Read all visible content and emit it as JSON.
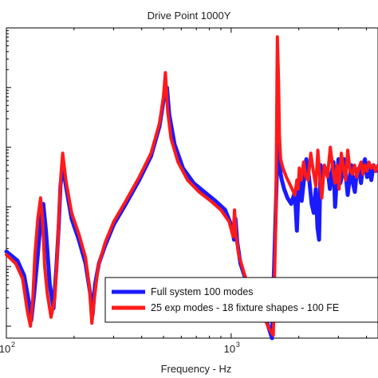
{
  "chart_data": {
    "type": "line",
    "title": "Drive Point 1000Y",
    "xlabel": "Frequency - Hz",
    "ylabel": "",
    "x_scale": "log",
    "y_scale": "log",
    "xlim": [
      100,
      4500
    ],
    "ylim": [
      -4.2,
      1.0
    ],
    "grid": false,
    "legend_position": "bottom-right",
    "x_tick_labels": [
      {
        "base": "10",
        "exp": "2",
        "x": 100
      },
      {
        "base": "10",
        "exp": "3",
        "x": 1000
      }
    ],
    "series": [
      {
        "name": "Full system 100 modes",
        "color": "#1a1aff",
        "x": [
          100,
          112,
          120,
          126,
          129,
          133,
          138,
          143,
          146,
          150,
          156,
          162,
          167,
          171,
          174,
          178,
          185,
          195,
          210,
          225,
          236,
          242,
          248,
          258,
          275,
          300,
          340,
          390,
          440,
          480,
          505,
          518,
          530,
          560,
          610,
          680,
          760,
          850,
          940,
          1000,
          1030,
          1045,
          1065,
          1100,
          1180,
          1300,
          1420,
          1520,
          1580,
          1610,
          1640,
          1660,
          1680,
          1720,
          1780,
          1850,
          1920,
          1960,
          1990,
          2020,
          2060,
          2100,
          2160,
          2220,
          2280,
          2330,
          2380,
          2420,
          2460,
          2500,
          2560,
          2620,
          2690,
          2750,
          2800,
          2850,
          2900,
          2950,
          3000,
          3060,
          3120,
          3180,
          3240,
          3300,
          3360,
          3420,
          3480,
          3550,
          3620,
          3700,
          3780,
          3860,
          3940,
          4020,
          4100,
          4200,
          4300,
          4400,
          4500
        ],
        "y": [
          -2.75,
          -2.9,
          -3.15,
          -3.6,
          -3.9,
          -3.45,
          -2.8,
          -2.1,
          -1.95,
          -2.4,
          -3.3,
          -3.7,
          -3.0,
          -2.3,
          -1.65,
          -1.3,
          -1.7,
          -2.2,
          -2.55,
          -2.95,
          -3.45,
          -3.8,
          -3.3,
          -2.95,
          -2.65,
          -2.3,
          -1.95,
          -1.55,
          -1.15,
          -0.65,
          -0.12,
          0.0,
          -0.45,
          -0.95,
          -1.35,
          -1.6,
          -1.75,
          -1.9,
          -2.05,
          -2.3,
          -2.55,
          -2.2,
          -2.6,
          -2.95,
          -3.3,
          -3.6,
          -3.85,
          -4.2,
          -2.0,
          -0.95,
          -1.25,
          -1.45,
          -1.55,
          -1.7,
          -1.85,
          -1.95,
          -1.75,
          -2.4,
          -1.75,
          -1.5,
          -1.9,
          -1.6,
          -1.2,
          -1.5,
          -1.95,
          -2.1,
          -1.7,
          -2.35,
          -2.55,
          -1.3,
          -1.45,
          -1.35,
          -1.4,
          -1.7,
          -1.45,
          -1.25,
          -2.0,
          -1.55,
          -1.2,
          -1.6,
          -1.45,
          -1.2,
          -1.5,
          -1.8,
          -1.55,
          -1.3,
          -1.6,
          -1.75,
          -1.4,
          -1.35,
          -1.6,
          -1.3,
          -1.2,
          -1.5,
          -1.35,
          -1.55,
          -1.3,
          -1.4,
          -1.35
        ]
      },
      {
        "name": "25 exp modes - 18 fixture shapes - 100 FE",
        "color": "#ff1a1a",
        "x": [
          100,
          110,
          118,
          124,
          128,
          131,
          134,
          138,
          142,
          145,
          148,
          152,
          158,
          164,
          168,
          172,
          175,
          178,
          184,
          195,
          210,
          225,
          234,
          240,
          246,
          256,
          275,
          300,
          340,
          390,
          440,
          480,
          500,
          510,
          522,
          540,
          580,
          640,
          720,
          810,
          900,
          980,
          1020,
          1035,
          1050,
          1080,
          1150,
          1260,
          1380,
          1480,
          1540,
          1580,
          1605,
          1625,
          1640,
          1660,
          1700,
          1760,
          1840,
          1920,
          1960,
          1985,
          2010,
          2050,
          2100,
          2150,
          2200,
          2260,
          2320,
          2380,
          2430,
          2480,
          2530,
          2600,
          2680,
          2760,
          2840,
          2900,
          2960,
          3020,
          3090,
          3160,
          3230,
          3300,
          3380,
          3460,
          3540,
          3620,
          3700,
          3780,
          3860,
          3940,
          4020,
          4100,
          4200,
          4300,
          4400,
          4500
        ],
        "y": [
          -2.8,
          -2.95,
          -3.2,
          -3.75,
          -4.0,
          -3.55,
          -2.8,
          -2.2,
          -1.85,
          -2.25,
          -3.0,
          -3.45,
          -3.85,
          -3.55,
          -2.9,
          -2.0,
          -1.45,
          -1.1,
          -1.55,
          -2.1,
          -2.45,
          -2.85,
          -3.35,
          -3.95,
          -3.55,
          -3.0,
          -2.6,
          -2.25,
          -1.9,
          -1.5,
          -1.1,
          -0.6,
          -0.15,
          0.25,
          -0.4,
          -0.85,
          -1.25,
          -1.55,
          -1.75,
          -1.9,
          -2.05,
          -2.25,
          -2.5,
          -2.05,
          -2.45,
          -2.8,
          -3.15,
          -3.5,
          -3.8,
          -4.05,
          -4.15,
          -2.2,
          0.85,
          0.1,
          -0.8,
          -1.2,
          -1.35,
          -1.5,
          -1.65,
          -1.8,
          -1.55,
          -1.7,
          -1.35,
          -1.55,
          -1.25,
          -1.5,
          -1.55,
          -1.1,
          -1.4,
          -1.65,
          -1.05,
          -1.5,
          -1.85,
          -1.3,
          -1.5,
          -1.0,
          -1.4,
          -1.6,
          -1.3,
          -1.7,
          -1.1,
          -1.35,
          -1.55,
          -1.05,
          -1.4,
          -1.45,
          -1.3,
          -1.5,
          -1.35,
          -1.25,
          -1.45,
          -1.3,
          -1.4,
          -1.25,
          -1.35,
          -1.3,
          -1.4,
          -1.3
        ]
      }
    ]
  }
}
